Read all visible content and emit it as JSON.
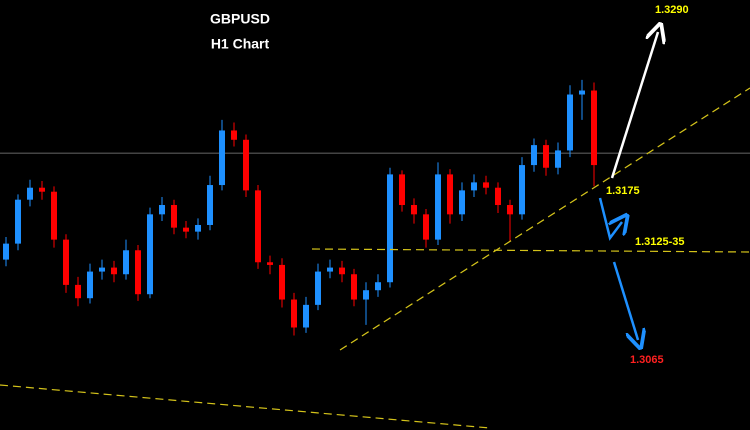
{
  "chart_data": {
    "type": "candlestick",
    "title": "GBPUSD",
    "subtitle": "H1 Chart",
    "up_color": "#1e90ff",
    "down_color": "#ff0000",
    "ylim": [
      1.2995,
      1.3318
    ],
    "current_price": 1.3203,
    "open": [
      1.3123,
      1.3135,
      1.3168,
      1.3177,
      1.3174,
      1.3138,
      1.3104,
      1.3094,
      1.3114,
      1.3117,
      1.3112,
      1.313,
      1.3097,
      1.3157,
      1.3164,
      1.3147,
      1.3144,
      1.3149,
      1.3179,
      1.322,
      1.3213,
      1.3175,
      1.3121,
      1.3119,
      1.3093,
      1.3072,
      1.3089,
      1.3114,
      1.3117,
      1.3112,
      1.3093,
      1.31,
      1.3106,
      1.3187,
      1.3164,
      1.3157,
      1.3138,
      1.3187,
      1.3157,
      1.3175,
      1.3181,
      1.3177,
      1.3164,
      1.3157,
      1.3194,
      1.3209,
      1.3192,
      1.3205,
      1.3247,
      1.325
    ],
    "high": [
      1.314,
      1.3172,
      1.3183,
      1.3182,
      1.3178,
      1.3142,
      1.311,
      1.312,
      1.3123,
      1.3122,
      1.3138,
      1.3134,
      1.3162,
      1.317,
      1.3168,
      1.3152,
      1.3154,
      1.3186,
      1.3228,
      1.3226,
      1.3217,
      1.3179,
      1.3126,
      1.3124,
      1.3098,
      1.3095,
      1.312,
      1.3123,
      1.3122,
      1.3116,
      1.3106,
      1.3112,
      1.3192,
      1.319,
      1.3169,
      1.3161,
      1.3196,
      1.3191,
      1.3181,
      1.3187,
      1.3186,
      1.3181,
      1.3168,
      1.32,
      1.3214,
      1.3213,
      1.3211,
      1.3254,
      1.3258,
      1.3256
    ],
    "low": [
      1.3118,
      1.313,
      1.3163,
      1.3168,
      1.3132,
      1.3098,
      1.3088,
      1.309,
      1.3108,
      1.3106,
      1.3108,
      1.3092,
      1.3094,
      1.3152,
      1.3142,
      1.3139,
      1.3138,
      1.3145,
      1.3175,
      1.3208,
      1.317,
      1.3116,
      1.3112,
      1.3087,
      1.3066,
      1.3068,
      1.3085,
      1.3109,
      1.3106,
      1.3088,
      1.3074,
      1.3095,
      1.3102,
      1.3159,
      1.315,
      1.3132,
      1.3134,
      1.315,
      1.3152,
      1.317,
      1.3172,
      1.3158,
      1.3137,
      1.3153,
      1.3189,
      1.3186,
      1.3187,
      1.32,
      1.3228,
      1.3178
    ],
    "close": [
      1.3135,
      1.3168,
      1.3177,
      1.3174,
      1.3138,
      1.3104,
      1.3094,
      1.3114,
      1.3117,
      1.3112,
      1.313,
      1.3097,
      1.3157,
      1.3164,
      1.3147,
      1.3144,
      1.3149,
      1.3179,
      1.322,
      1.3213,
      1.3175,
      1.3121,
      1.3119,
      1.3093,
      1.3072,
      1.3089,
      1.3114,
      1.3117,
      1.3112,
      1.3093,
      1.31,
      1.3106,
      1.3187,
      1.3164,
      1.3157,
      1.3138,
      1.3187,
      1.3157,
      1.3175,
      1.3181,
      1.3177,
      1.3164,
      1.3157,
      1.3194,
      1.3209,
      1.3192,
      1.3205,
      1.3247,
      1.325,
      1.3194
    ],
    "annotations": [
      {
        "text": "1.3290",
        "color": "#ffff00"
      },
      {
        "text": "1.3175",
        "color": "#ffff00"
      },
      {
        "text": "1.3125-35",
        "color": "#ffff00"
      },
      {
        "text": "1.3065",
        "color": "#ff2020"
      }
    ]
  }
}
